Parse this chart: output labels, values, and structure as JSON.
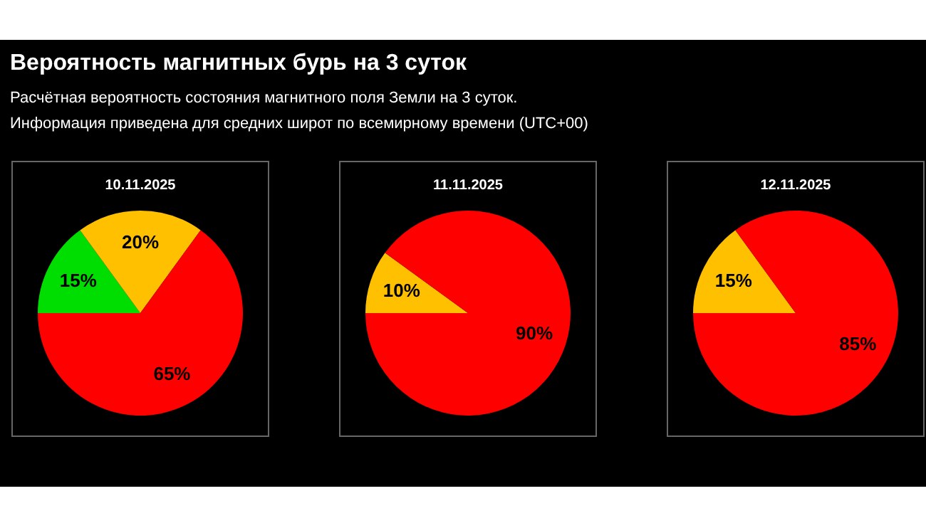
{
  "chart_data": [
    {
      "type": "other",
      "title": "Вероятность магнитных бурь на 3 суток",
      "annotations": [
        "Расчётная вероятность состояния магнитного поля Земли на 3 суток.",
        "Информация приведена для средних широт по всемирному времени (UTC+00)"
      ]
    },
    {
      "type": "pie",
      "title": "10.11.2025",
      "categories": [
        null,
        null,
        null
      ],
      "values": [
        15,
        20,
        65
      ],
      "colors": [
        "#00dd00",
        "#ffc000",
        "#ff0000"
      ],
      "value_labels": [
        "15%",
        "20%",
        "65%"
      ]
    },
    {
      "type": "pie",
      "title": "11.11.2025",
      "categories": [
        null,
        null
      ],
      "values": [
        10,
        90
      ],
      "colors": [
        "#ffc000",
        "#ff0000"
      ],
      "value_labels": [
        "10%",
        "90%"
      ]
    },
    {
      "type": "pie",
      "title": "12.11.2025",
      "categories": [
        null,
        null
      ],
      "values": [
        15,
        85
      ],
      "colors": [
        "#ffc000",
        "#ff0000"
      ],
      "value_labels": [
        "15%",
        "85%"
      ]
    }
  ]
}
